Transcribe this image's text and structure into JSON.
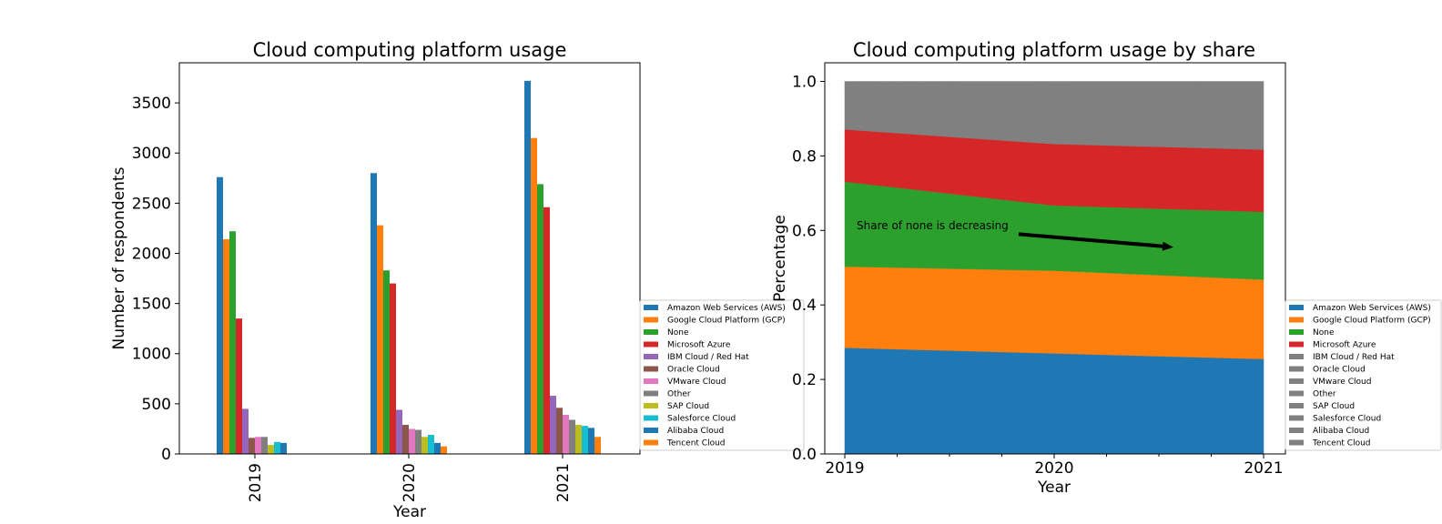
{
  "colors": {
    "palette": [
      "#1f77b4",
      "#ff7f0e",
      "#2ca02c",
      "#d62728",
      "#9467bd",
      "#8c564b",
      "#e377c2",
      "#7f7f7f",
      "#bcbd22",
      "#17becf",
      "#1f77b4",
      "#ff7f0e"
    ],
    "gray": "#808080",
    "arrow": "#000000"
  },
  "chart_data": [
    {
      "type": "bar",
      "title": "Cloud computing platform usage",
      "xlabel": "Year",
      "ylabel": "Number of respondents",
      "categories": [
        "2019",
        "2020",
        "2021"
      ],
      "ylim": [
        0,
        3900
      ],
      "yticks": [
        0,
        500,
        1000,
        1500,
        2000,
        2500,
        3000,
        3500
      ],
      "legend_placement": "right",
      "series": [
        {
          "name": "Amazon Web Services (AWS)",
          "values": [
            2760,
            2800,
            3720
          ]
        },
        {
          "name": "Google Cloud Platform (GCP)",
          "values": [
            2140,
            2280,
            3150
          ]
        },
        {
          "name": "None",
          "values": [
            2220,
            1830,
            2690
          ]
        },
        {
          "name": "Microsoft Azure",
          "values": [
            1350,
            1700,
            2460
          ]
        },
        {
          "name": "IBM Cloud / Red Hat",
          "values": [
            450,
            440,
            580
          ]
        },
        {
          "name": "Oracle Cloud",
          "values": [
            160,
            290,
            460
          ]
        },
        {
          "name": "VMware Cloud",
          "values": [
            170,
            250,
            390
          ]
        },
        {
          "name": "Other",
          "values": [
            170,
            240,
            340
          ]
        },
        {
          "name": "SAP Cloud",
          "values": [
            90,
            170,
            290
          ]
        },
        {
          "name": "Salesforce Cloud",
          "values": [
            120,
            190,
            280
          ]
        },
        {
          "name": "Alibaba Cloud",
          "values": [
            110,
            110,
            260
          ]
        },
        {
          "name": "Tencent Cloud",
          "values": [
            0,
            75,
            170
          ]
        }
      ]
    },
    {
      "type": "area",
      "title": "Cloud computing platform usage by share",
      "xlabel": "Year",
      "ylabel": "Percentage",
      "x": [
        2019,
        2020,
        2021
      ],
      "xticks": [
        "2019",
        "2020",
        "2021"
      ],
      "ylim": [
        0,
        1.05
      ],
      "yticks": [
        "0.0",
        "0.2",
        "0.4",
        "0.6",
        "0.8",
        "1.0"
      ],
      "legend_placement": "right",
      "highlighted_series": 4,
      "series": [
        {
          "name": "Amazon Web Services (AWS)",
          "values": [
            0.285,
            0.27,
            0.255
          ]
        },
        {
          "name": "Google Cloud Platform (GCP)",
          "values": [
            0.218,
            0.222,
            0.213
          ]
        },
        {
          "name": "None",
          "values": [
            0.228,
            0.175,
            0.182
          ]
        },
        {
          "name": "Microsoft Azure",
          "values": [
            0.14,
            0.165,
            0.167
          ]
        },
        {
          "name": "IBM Cloud / Red Hat",
          "values": [
            0.046,
            0.043,
            0.039
          ]
        },
        {
          "name": "Oracle Cloud",
          "values": [
            0.016,
            0.028,
            0.031
          ]
        },
        {
          "name": "VMware Cloud",
          "values": [
            0.017,
            0.024,
            0.026
          ]
        },
        {
          "name": "Other",
          "values": [
            0.017,
            0.023,
            0.023
          ]
        },
        {
          "name": "SAP Cloud",
          "values": [
            0.009,
            0.017,
            0.02
          ]
        },
        {
          "name": "Salesforce Cloud",
          "values": [
            0.012,
            0.018,
            0.019
          ]
        },
        {
          "name": "Alibaba Cloud",
          "values": [
            0.011,
            0.011,
            0.018
          ]
        },
        {
          "name": "Tencent Cloud",
          "values": [
            0.001,
            0.004,
            0.007
          ]
        }
      ],
      "annotation": {
        "text": "Share of none is decreasing",
        "arrow_from": [
          2019.83,
          0.59
        ],
        "arrow_to": [
          2020.57,
          0.555
        ]
      }
    }
  ]
}
